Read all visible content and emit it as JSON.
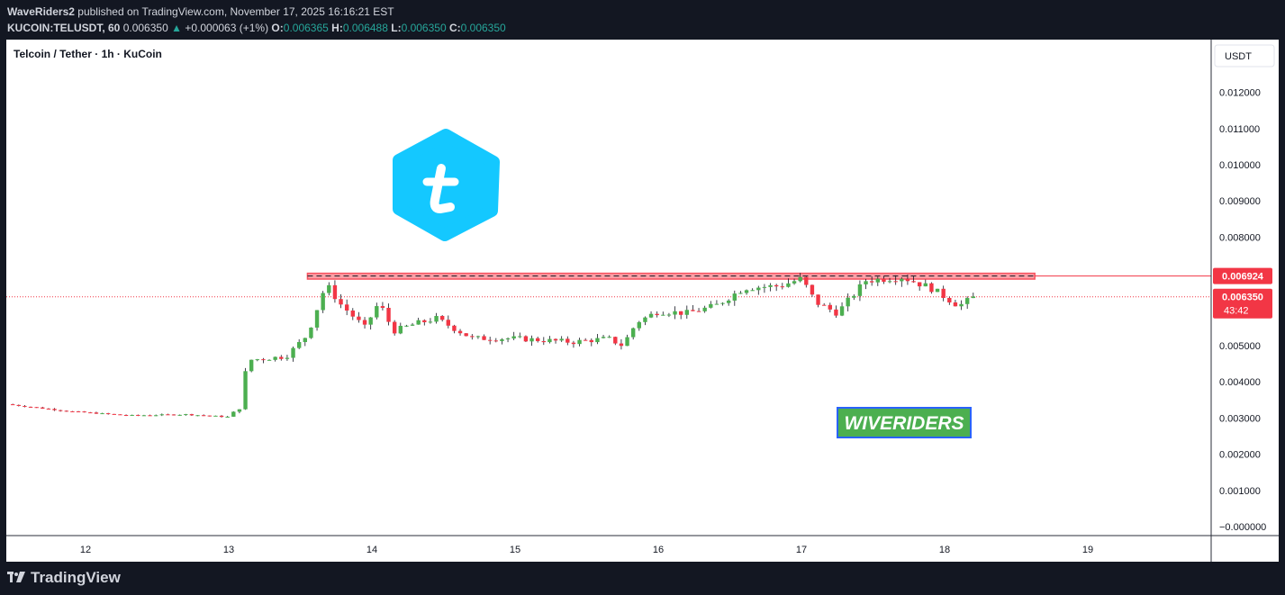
{
  "header": {
    "author": "WaveRiders2",
    "published": "published on TradingView.com, November 17, 2025 16:16:21 EST",
    "symbol": "KUCOIN:TELUSDT, 60",
    "last": "0.006350",
    "change": "+0.000063 (+1%)",
    "o_label": "O:",
    "o_value": "0.006365",
    "h_label": "H:",
    "h_value": "0.006488",
    "l_label": "L:",
    "l_value": "0.006350",
    "c_label": "C:",
    "c_value": "0.006350"
  },
  "footer": {
    "brand": "TradingView"
  },
  "chart_data": {
    "type": "candlestick",
    "title": "Telcoin / Tether · 1h · KuCoin",
    "currency": "USDT",
    "ylim": [
      -0.0003,
      0.0128
    ],
    "y_ticks": [
      "0.012000",
      "0.011000",
      "0.010000",
      "0.009000",
      "0.008000",
      "0.007000",
      "0.006000",
      "0.005000",
      "0.004000",
      "0.003000",
      "0.002000",
      "0.001000",
      "−0.000000"
    ],
    "y_tick_values": [
      0.012,
      0.011,
      0.01,
      0.009,
      0.008,
      0.007,
      0.006,
      0.005,
      0.004,
      0.003,
      0.002,
      0.001,
      0
    ],
    "x_ticks": [
      "12",
      "13",
      "14",
      "15",
      "16",
      "17",
      "18",
      "19"
    ],
    "x_tick_days": [
      12,
      13,
      14,
      15,
      16,
      17,
      18,
      19
    ],
    "xlim_days": [
      11.45,
      20.45
    ],
    "resistance_level": 0.006924,
    "resistance_zone": [
      0.00684,
      0.007
    ],
    "resistance_label": "0.006924",
    "last_price": 0.00635,
    "last_price_label": "0.006350",
    "countdown": "43:42",
    "watermark_text": "WIVERIDERS",
    "colors": {
      "up": "#4caf50",
      "down": "#f23645",
      "zone": "#f7525f",
      "tag": "#f23645",
      "logo": "#14c8ff",
      "watermark_bg": "#4caf50",
      "watermark_border": "#2962ff"
    },
    "candle_interval_hours": 1,
    "close_path_anchors": [
      {
        "day": 11.45,
        "price": 0.00338
      },
      {
        "day": 11.9,
        "price": 0.00318
      },
      {
        "day": 12.3,
        "price": 0.00307
      },
      {
        "day": 12.7,
        "price": 0.0031
      },
      {
        "day": 13.0,
        "price": 0.00303
      },
      {
        "day": 13.08,
        "price": 0.0033
      },
      {
        "day": 13.13,
        "price": 0.0046
      },
      {
        "day": 13.4,
        "price": 0.0047
      },
      {
        "day": 13.55,
        "price": 0.0053
      },
      {
        "day": 13.68,
        "price": 0.0067
      },
      {
        "day": 13.78,
        "price": 0.00615
      },
      {
        "day": 13.95,
        "price": 0.0055
      },
      {
        "day": 14.05,
        "price": 0.0062
      },
      {
        "day": 14.15,
        "price": 0.0054
      },
      {
        "day": 14.3,
        "price": 0.0056
      },
      {
        "day": 14.45,
        "price": 0.00575
      },
      {
        "day": 14.7,
        "price": 0.0052
      },
      {
        "day": 15.0,
        "price": 0.0052
      },
      {
        "day": 15.4,
        "price": 0.0051
      },
      {
        "day": 15.65,
        "price": 0.0052
      },
      {
        "day": 15.75,
        "price": 0.005
      },
      {
        "day": 15.85,
        "price": 0.00565
      },
      {
        "day": 16.0,
        "price": 0.00595
      },
      {
        "day": 16.2,
        "price": 0.0059
      },
      {
        "day": 16.4,
        "price": 0.0061
      },
      {
        "day": 16.6,
        "price": 0.0066
      },
      {
        "day": 16.85,
        "price": 0.00665
      },
      {
        "day": 17.0,
        "price": 0.00685
      },
      {
        "day": 17.1,
        "price": 0.0062
      },
      {
        "day": 17.25,
        "price": 0.0059
      },
      {
        "day": 17.45,
        "price": 0.0068
      },
      {
        "day": 17.7,
        "price": 0.0069
      },
      {
        "day": 17.9,
        "price": 0.0066
      },
      {
        "day": 18.1,
        "price": 0.0061
      },
      {
        "day": 18.21,
        "price": 0.00635
      }
    ]
  }
}
